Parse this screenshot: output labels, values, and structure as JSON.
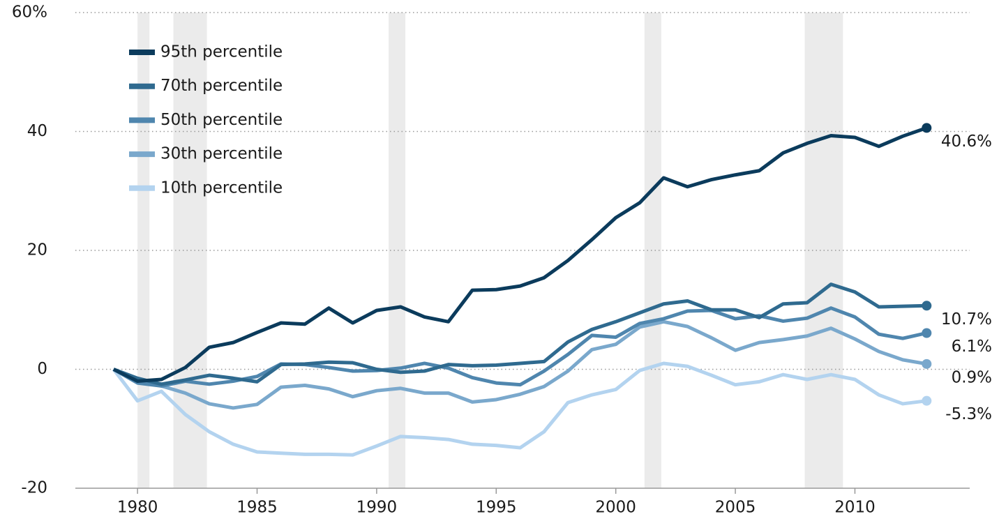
{
  "chart_data": {
    "type": "line",
    "x": [
      1979,
      1980,
      1981,
      1982,
      1983,
      1984,
      1985,
      1986,
      1987,
      1988,
      1989,
      1990,
      1991,
      1992,
      1993,
      1994,
      1995,
      1996,
      1997,
      1998,
      1999,
      2000,
      2001,
      2002,
      2003,
      2004,
      2005,
      2006,
      2007,
      2008,
      2009,
      2010,
      2011,
      2012,
      2013
    ],
    "xlim": [
      1977.4,
      2014.8
    ],
    "xticks": [
      1980,
      1985,
      1990,
      1995,
      2000,
      2005,
      2010
    ],
    "ylim": [
      -20,
      60
    ],
    "yticks": [
      {
        "value": 60,
        "label": "60%"
      },
      40,
      20,
      0,
      -20
    ],
    "grid": true,
    "legend": "top-left",
    "shaded_periods": [
      [
        1980.0,
        1980.5
      ],
      [
        1981.5,
        1982.9
      ],
      [
        1990.5,
        1991.2
      ],
      [
        2001.2,
        2001.9
      ],
      [
        2007.9,
        2009.5
      ]
    ],
    "shade_color": "#ebebeb",
    "series": [
      {
        "name": "95th percentile",
        "color": "#0b3b5c",
        "values": [
          0,
          -2,
          -1.7,
          0.3,
          3.7,
          4.5,
          6.2,
          7.8,
          7.6,
          10.3,
          7.8,
          9.9,
          10.5,
          8.8,
          8,
          13.3,
          13.4,
          14,
          15.4,
          18.3,
          21.8,
          25.5,
          28,
          32.2,
          30.7,
          31.9,
          32.7,
          33.4,
          36.4,
          38,
          39.3,
          39,
          37.5,
          39.2,
          40.6
        ],
        "value_labels": [
          null,
          null,
          null,
          null,
          null,
          null,
          null,
          null,
          null,
          null,
          null,
          null,
          null,
          null,
          null,
          null,
          null,
          null,
          null,
          null,
          null,
          null,
          null,
          null,
          null,
          null,
          null,
          null,
          null,
          null,
          null,
          null,
          null,
          null,
          "40.6%"
        ]
      },
      {
        "name": "70th percentile",
        "color": "#2f6a8f",
        "values": [
          0,
          -1.5,
          -2.5,
          -1.8,
          -1,
          -1.5,
          -2.1,
          0.8,
          0.9,
          1.2,
          1.1,
          0,
          -0.5,
          -0.3,
          0.8,
          0.6,
          0.7,
          1,
          1.3,
          4.6,
          6.7,
          8,
          9.5,
          11,
          11.5,
          10,
          10,
          8.7,
          11,
          11.2,
          14.3,
          13,
          10.5,
          10.6,
          10.7
        ],
        "value_labels": [
          null,
          null,
          null,
          null,
          null,
          null,
          null,
          null,
          null,
          null,
          null,
          null,
          null,
          null,
          null,
          null,
          null,
          null,
          null,
          null,
          null,
          null,
          null,
          null,
          null,
          null,
          null,
          null,
          null,
          null,
          null,
          null,
          null,
          null,
          "10.7%"
        ]
      },
      {
        "name": "50th percentile",
        "color": "#4f86ae",
        "values": [
          0,
          -2.3,
          -2.8,
          -2,
          -2.5,
          -2,
          -1.2,
          0.9,
          0.8,
          0.3,
          -0.3,
          -0.2,
          0.2,
          1,
          0.2,
          -1.4,
          -2.3,
          -2.6,
          -0.3,
          2.5,
          5.7,
          5.4,
          7.7,
          8.5,
          9.8,
          9.9,
          8.5,
          9,
          8.1,
          8.6,
          10.3,
          8.8,
          5.9,
          5.2,
          6.1
        ],
        "value_labels": [
          null,
          null,
          null,
          null,
          null,
          null,
          null,
          null,
          null,
          null,
          null,
          null,
          null,
          null,
          null,
          null,
          null,
          null,
          null,
          null,
          null,
          null,
          null,
          null,
          null,
          null,
          null,
          null,
          null,
          null,
          null,
          null,
          null,
          null,
          "6.1%"
        ]
      },
      {
        "name": "30th percentile",
        "color": "#7aa8cc",
        "values": [
          0,
          -1.8,
          -2.8,
          -4,
          -5.8,
          -6.5,
          -5.9,
          -3,
          -2.7,
          -3.3,
          -4.6,
          -3.6,
          -3.2,
          -4,
          -4,
          -5.5,
          -5.1,
          -4.2,
          -2.9,
          -0.3,
          3.3,
          4.2,
          7.1,
          8,
          7.2,
          5.3,
          3.2,
          4.5,
          5,
          5.6,
          6.9,
          5.1,
          3,
          1.6,
          0.9
        ],
        "value_labels": [
          null,
          null,
          null,
          null,
          null,
          null,
          null,
          null,
          null,
          null,
          null,
          null,
          null,
          null,
          null,
          null,
          null,
          null,
          null,
          null,
          null,
          null,
          null,
          null,
          null,
          null,
          null,
          null,
          null,
          null,
          null,
          null,
          null,
          null,
          "0.9%"
        ]
      },
      {
        "name": "10th percentile",
        "color": "#b3d3ef",
        "values": [
          0,
          -5.3,
          -3.7,
          -7.6,
          -10.5,
          -12.6,
          -13.9,
          -14.1,
          -14.3,
          -14.3,
          -14.4,
          -12.9,
          -11.3,
          -11.5,
          -11.8,
          -12.6,
          -12.8,
          -13.2,
          -10.5,
          -5.6,
          -4.3,
          -3.4,
          -0.2,
          1,
          0.5,
          -1,
          -2.6,
          -2.1,
          -0.9,
          -1.7,
          -0.9,
          -1.7,
          -4.3,
          -5.8,
          -5.3
        ],
        "value_labels": [
          null,
          null,
          null,
          null,
          null,
          null,
          null,
          null,
          null,
          null,
          null,
          null,
          null,
          null,
          null,
          null,
          null,
          null,
          null,
          null,
          null,
          null,
          null,
          null,
          null,
          null,
          null,
          null,
          null,
          null,
          null,
          null,
          null,
          null,
          "-5.3%"
        ]
      }
    ]
  }
}
